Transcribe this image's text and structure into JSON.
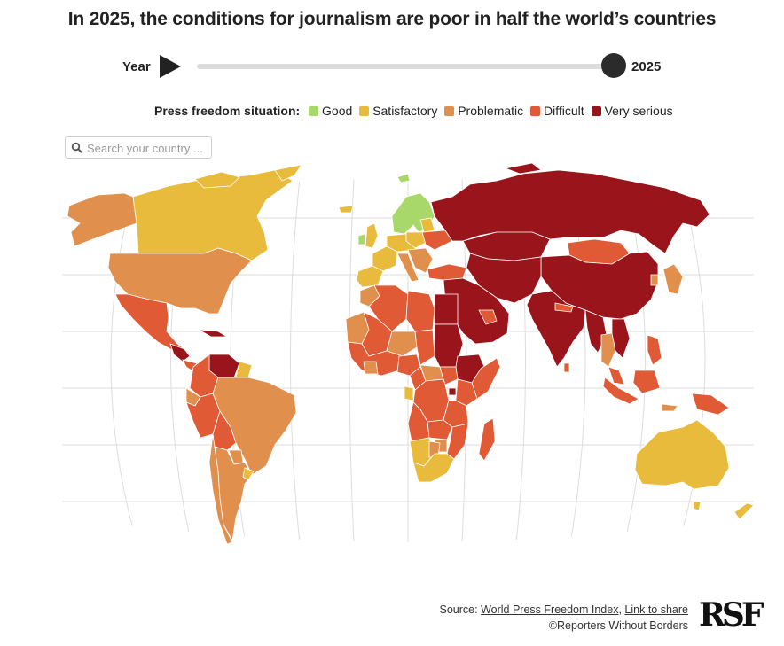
{
  "title": "In 2025, the conditions for journalism are poor in half the world’s countries",
  "timeline": {
    "label": "Year",
    "value": "2025",
    "progress": 1.0
  },
  "legend": {
    "title": "Press freedom situation:",
    "items": [
      {
        "label": "Good",
        "color": "#a8d86a"
      },
      {
        "label": "Satisfactory",
        "color": "#e9bb3c"
      },
      {
        "label": "Problematic",
        "color": "#e0904c"
      },
      {
        "label": "Difficult",
        "color": "#e05a36"
      },
      {
        "label": "Very serious",
        "color": "#99151b"
      }
    ]
  },
  "search": {
    "placeholder": "Search your country ...",
    "value": "",
    "icon": "search-icon"
  },
  "footer": {
    "source_prefix": "Source: ",
    "source_link": "World Press Freedom Index",
    "separator": ", ",
    "share_link": "Link to share",
    "copyright": "©Reporters Without Borders",
    "logo_text": "RSF"
  }
}
